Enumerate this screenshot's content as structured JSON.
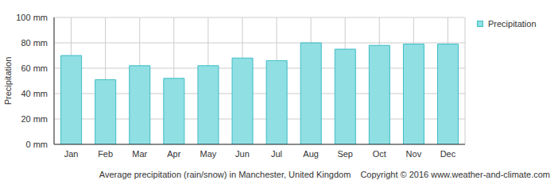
{
  "chart_data": {
    "type": "bar",
    "title": "Average precipitation (rain/snow) in Manchester, United Kingdom",
    "subtitle": "Copyright © 2016 www.weather-and-climate.com",
    "ylabel": "Precipitation",
    "categories": [
      "Jan",
      "Feb",
      "Mar",
      "Apr",
      "May",
      "Jun",
      "Jul",
      "Aug",
      "Sep",
      "Oct",
      "Nov",
      "Dec"
    ],
    "series": [
      {
        "name": "Precipitation",
        "color": "#90dfe3",
        "values": [
          70,
          51,
          62,
          52,
          62,
          68,
          66,
          80,
          75,
          78,
          79,
          79
        ]
      }
    ],
    "ylim": [
      0,
      100
    ],
    "yticks": [
      {
        "value": 0,
        "label": "0 mm"
      },
      {
        "value": 20,
        "label": "20 mm"
      },
      {
        "value": 40,
        "label": "40 mm"
      },
      {
        "value": 60,
        "label": "60 mm"
      },
      {
        "value": 80,
        "label": "80 mm"
      },
      {
        "value": 100,
        "label": "100 mm"
      }
    ],
    "grid": true,
    "legend": "right"
  }
}
